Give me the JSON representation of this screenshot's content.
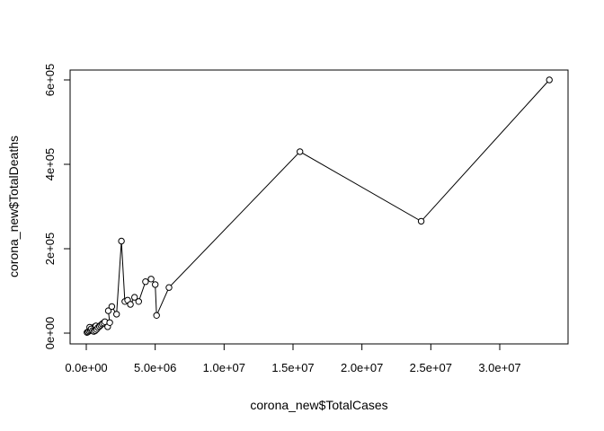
{
  "chart_data": {
    "type": "scatter",
    "line_connected": true,
    "title": "",
    "xlabel": "corona_new$TotalCases",
    "ylabel": "corona_new$TotalDeaths",
    "xlim": [
      0,
      34000000
    ],
    "ylim": [
      0,
      620000
    ],
    "xticks": [
      0,
      5000000,
      10000000,
      15000000,
      20000000,
      25000000,
      30000000
    ],
    "xtick_labels": [
      "0.0e+00",
      "5.0e+06",
      "1.0e+07",
      "1.5e+07",
      "2.0e+07",
      "2.5e+07",
      "3.0e+07"
    ],
    "yticks": [
      0,
      200000,
      400000,
      600000
    ],
    "ytick_labels": [
      "0e+00",
      "2e+05",
      "4e+05",
      "6e+05"
    ],
    "grid": false,
    "series": [
      {
        "points": [
          [
            50000,
            1500
          ],
          [
            120000,
            3000
          ],
          [
            200000,
            5000
          ],
          [
            300000,
            7000
          ],
          [
            400000,
            9000
          ],
          [
            500000,
            12000
          ],
          [
            600000,
            15000
          ],
          [
            700000,
            17000
          ],
          [
            250000,
            14000
          ],
          [
            350000,
            10000
          ],
          [
            450000,
            6000
          ],
          [
            550000,
            4000
          ],
          [
            650000,
            6000
          ],
          [
            750000,
            9000
          ],
          [
            850000,
            13000
          ],
          [
            950000,
            16000
          ],
          [
            1050000,
            19000
          ],
          [
            1150000,
            22000
          ],
          [
            1250000,
            24000
          ],
          [
            1350000,
            27000
          ],
          [
            1550000,
            15000
          ],
          [
            1700000,
            25000
          ],
          [
            1600000,
            53000
          ],
          [
            1850000,
            63000
          ],
          [
            2200000,
            45000
          ],
          [
            2550000,
            218000
          ],
          [
            2800000,
            75000
          ],
          [
            3000000,
            78000
          ],
          [
            3200000,
            68000
          ],
          [
            3500000,
            85000
          ],
          [
            3800000,
            75000
          ],
          [
            4300000,
            122000
          ],
          [
            4700000,
            128000
          ],
          [
            5000000,
            115000
          ],
          [
            5100000,
            42000
          ],
          [
            6000000,
            108000
          ],
          [
            15500000,
            430000
          ],
          [
            24300000,
            265000
          ],
          [
            33600000,
            600000
          ]
        ]
      }
    ]
  }
}
